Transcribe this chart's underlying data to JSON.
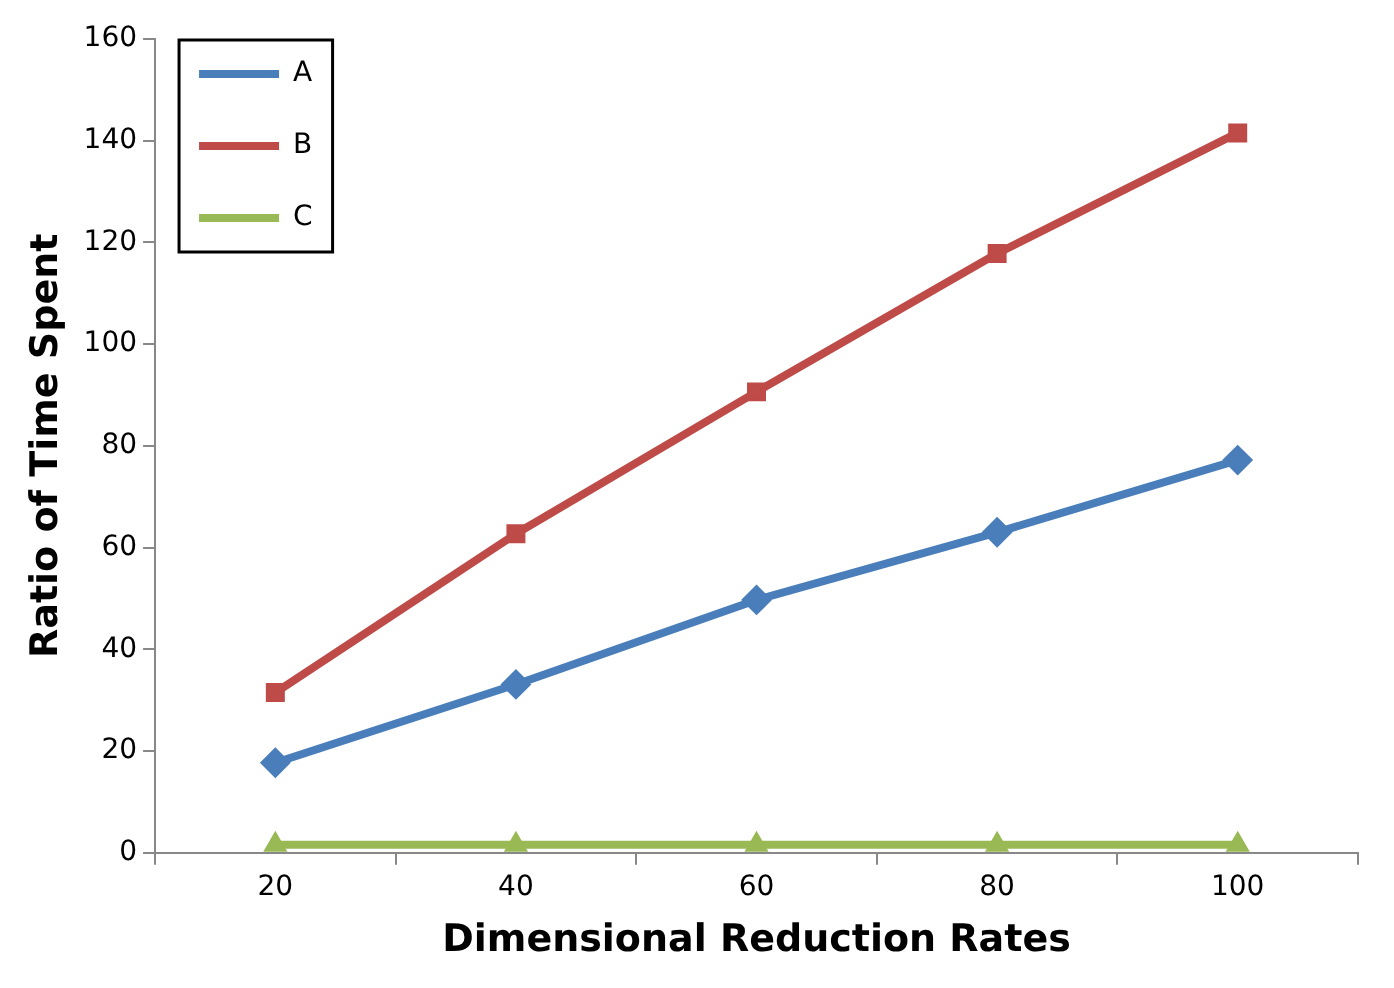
{
  "chart_data": {
    "type": "line",
    "xlabel": "Dimensional Reduction Rates",
    "ylabel": "Ratio of Time Spent",
    "categories": [
      "20",
      "40",
      "60",
      "80",
      "100"
    ],
    "series": [
      {
        "name": "A",
        "color": "#4a7ebb",
        "marker": "diamond",
        "values": [
          17.7,
          33.1,
          49.7,
          63,
          77.2
        ]
      },
      {
        "name": "B",
        "color": "#be4b48",
        "marker": "square",
        "values": [
          31.5,
          62.7,
          90.6,
          117.8,
          141.5
        ]
      },
      {
        "name": "C",
        "color": "#98b954",
        "marker": "triangle",
        "values": [
          1.6,
          1.6,
          1.6,
          1.6,
          1.6
        ]
      }
    ],
    "ylim": [
      0,
      160
    ],
    "yticks": [
      0,
      20,
      40,
      60,
      80,
      100,
      120,
      140,
      160
    ],
    "grid": false,
    "legend": "top left",
    "line_style": "solid"
  }
}
